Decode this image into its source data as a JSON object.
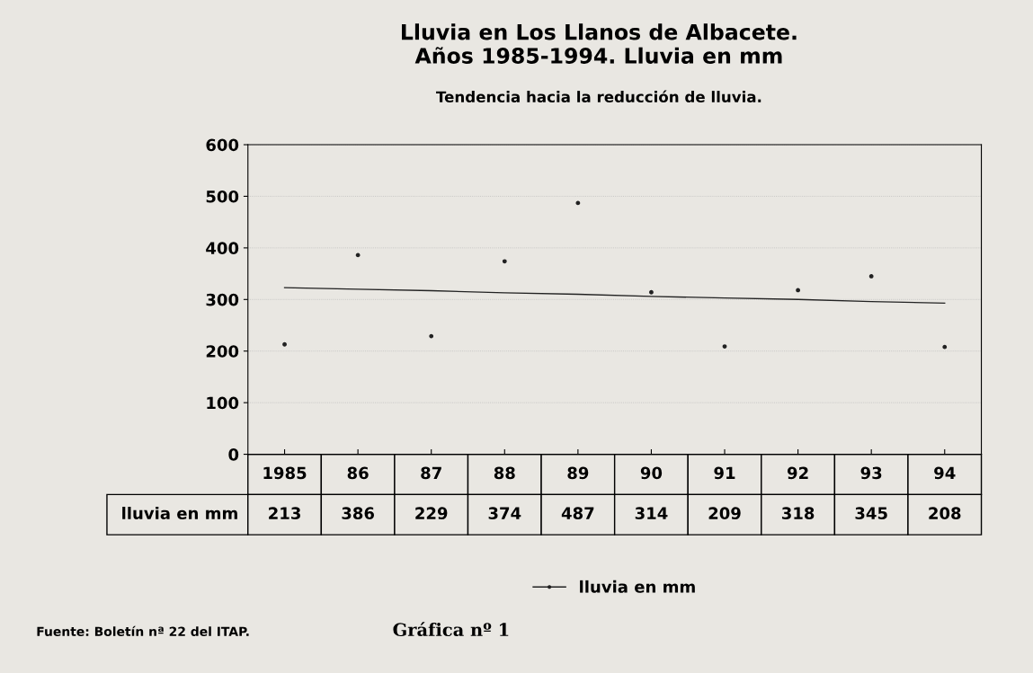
{
  "chart_data": {
    "type": "scatter",
    "title": "Lluvia en Los Llanos de Albacete.\nAños 1985-1994. Lluvia en mm",
    "subtitle": "Tendencia hacia la reducción de lluvia.",
    "categories": [
      "1985",
      "86",
      "87",
      "88",
      "89",
      "90",
      "91",
      "92",
      "93",
      "94"
    ],
    "series": [
      {
        "name": "lluvia en mm",
        "color": "#222222",
        "values": [
          213,
          386,
          229,
          374,
          487,
          314,
          209,
          318,
          345,
          208
        ],
        "marker": "circle",
        "value_labels": [
          "213",
          "386",
          "229",
          "374",
          "487",
          "314",
          "209",
          "318",
          "345",
          "208"
        ]
      },
      {
        "type": "line",
        "color": "#222222",
        "marker": "none",
        "values": [
          323,
          320,
          317,
          313,
          310,
          306,
          303,
          300,
          296,
          293
        ]
      }
    ],
    "ylim": [
      0,
      600
    ],
    "yticks": [
      0,
      100,
      200,
      300,
      400,
      500,
      600
    ],
    "grid": "y",
    "legend": "bottom",
    "annotations": [
      "Fuente: Boletín nª 22 del ITAP.",
      "Gráfica nº 1"
    ]
  }
}
